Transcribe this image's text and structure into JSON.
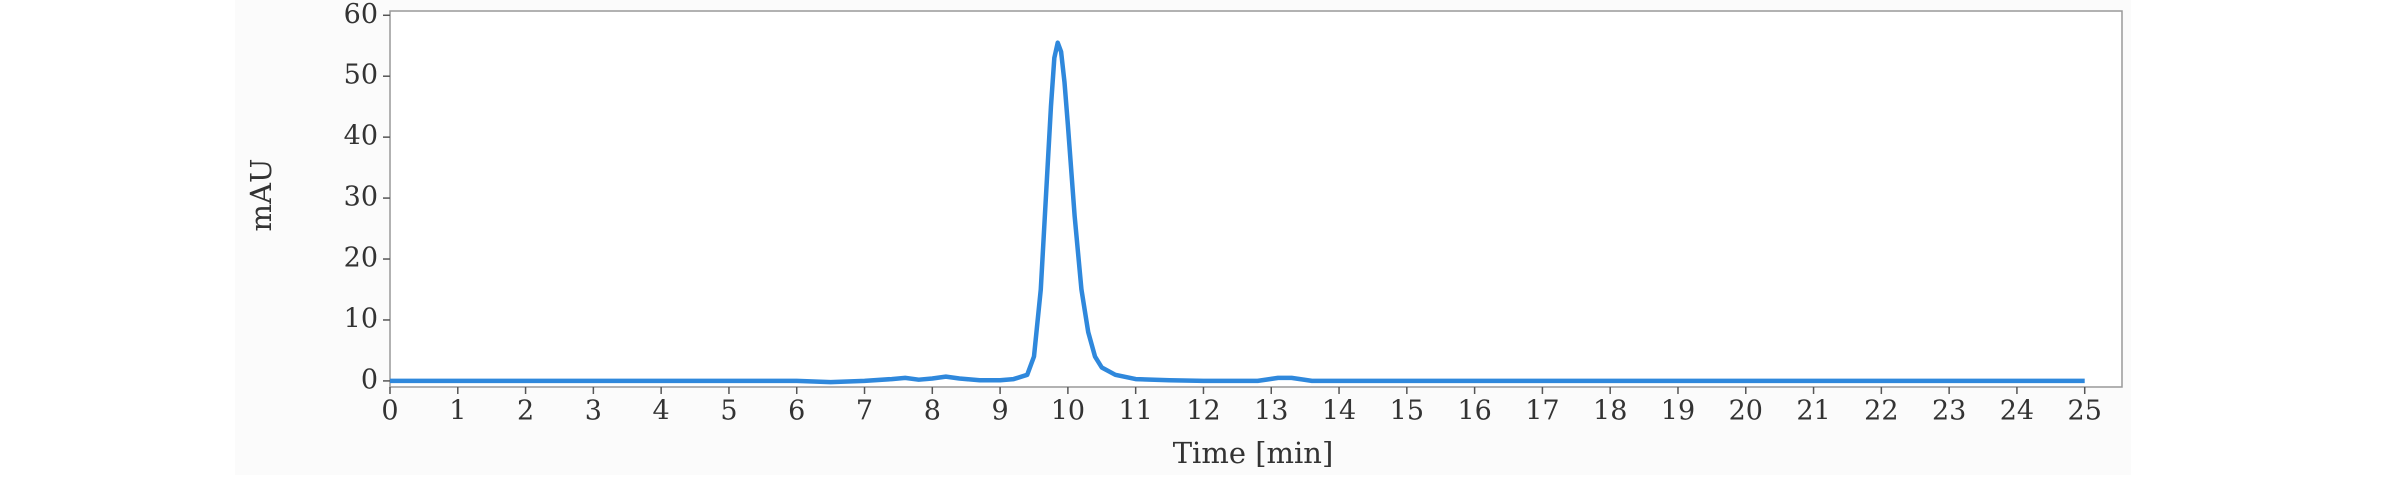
{
  "chart_data": {
    "type": "line",
    "x_label": "Time [min]",
    "y_label": "mAU",
    "x": [
      0,
      1,
      2,
      3,
      4,
      5,
      6,
      6.5,
      7,
      7.4,
      7.6,
      7.8,
      8.0,
      8.2,
      8.4,
      8.7,
      9.0,
      9.2,
      9.4,
      9.5,
      9.6,
      9.7,
      9.75,
      9.8,
      9.85,
      9.9,
      9.95,
      10.0,
      10.1,
      10.2,
      10.3,
      10.4,
      10.5,
      10.7,
      11.0,
      11.5,
      12,
      12.8,
      13.1,
      13.3,
      13.6,
      14,
      15,
      16,
      17,
      18,
      19,
      20,
      21,
      22,
      23,
      24,
      25
    ],
    "series": [
      {
        "name": "mAU",
        "color": "#2f88dc",
        "values": [
          0,
          0,
          0,
          0,
          0,
          0,
          0,
          -0.2,
          0,
          0.3,
          0.5,
          0.2,
          0.4,
          0.7,
          0.4,
          0.1,
          0.1,
          0.3,
          1,
          4,
          15,
          35,
          45,
          53,
          55.5,
          54,
          49,
          42,
          27,
          15,
          8,
          4,
          2.2,
          1,
          0.3,
          0.1,
          0,
          0,
          0.5,
          0.5,
          0,
          0,
          0,
          0,
          0,
          0,
          0,
          0,
          0,
          0,
          0,
          0,
          0
        ]
      }
    ],
    "xlim": [
      0,
      25.55
    ],
    "ylim": [
      -1,
      60.7
    ],
    "xticks": [
      0,
      1,
      2,
      3,
      4,
      5,
      6,
      7,
      8,
      9,
      10,
      11,
      12,
      13,
      14,
      15,
      16,
      17,
      18,
      19,
      20,
      21,
      22,
      23,
      24,
      25
    ],
    "yticks": [
      0,
      10,
      20,
      30,
      40,
      50,
      60
    ]
  }
}
